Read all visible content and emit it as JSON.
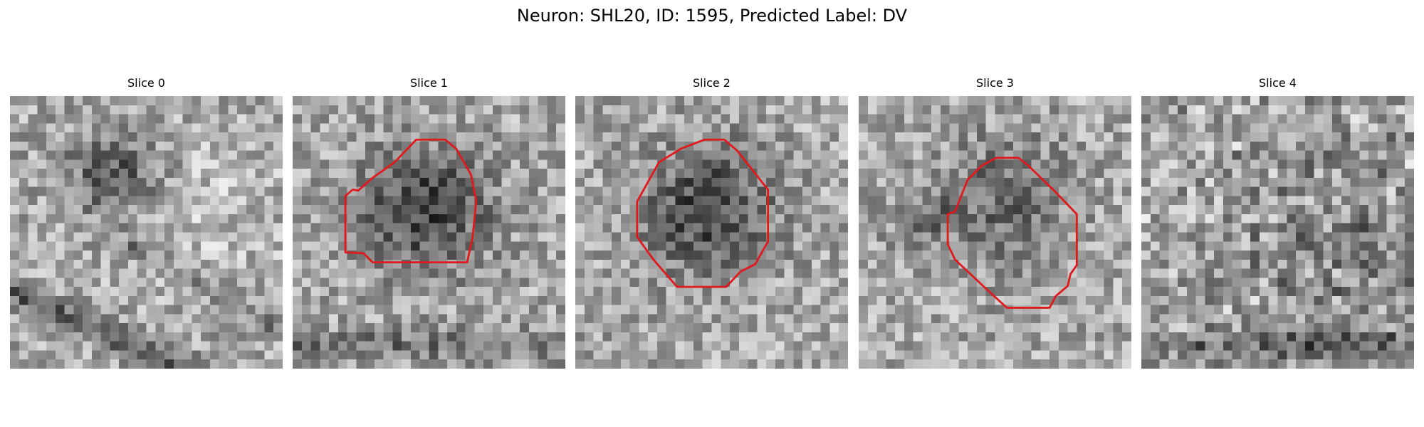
{
  "figure": {
    "title": "Neuron: SHL20, ID: 1595, Predicted Label: DV"
  },
  "contour_color": "#e0191d",
  "slices": [
    {
      "label": "Slice 0",
      "has_contour": false,
      "seed": 11,
      "blob": "topleft-dark",
      "band": "diagonal"
    },
    {
      "label": "Slice 1",
      "has_contour": true,
      "seed": 23,
      "blob": "center-dark",
      "band": "lower"
    },
    {
      "label": "Slice 2",
      "has_contour": true,
      "seed": 37,
      "blob": "center-dark",
      "band": "none"
    },
    {
      "label": "Slice 3",
      "has_contour": true,
      "seed": 51,
      "blob": "center-mid",
      "band": "none"
    },
    {
      "label": "Slice 4",
      "has_contour": false,
      "seed": 67,
      "blob": "speckle",
      "band": "bottom"
    }
  ]
}
